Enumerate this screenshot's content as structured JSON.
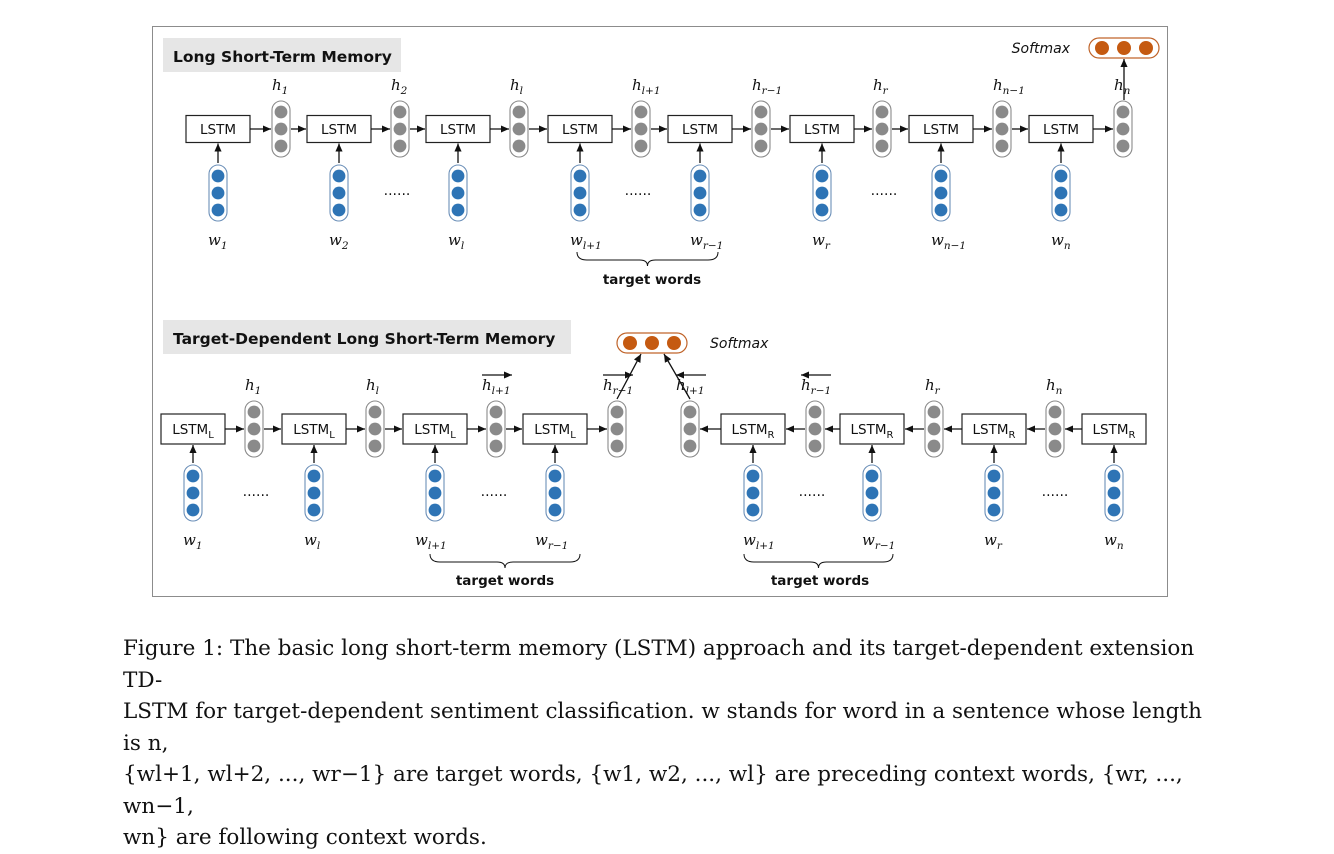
{
  "top_panel": {
    "title": "Long Short-Term Memory",
    "softmax_label": "Softmax",
    "box_label": "LSTM",
    "ellipsis": "......",
    "hidden_labels": [
      {
        "base": "h",
        "sub": "1"
      },
      {
        "base": "h",
        "sub": "2"
      },
      {
        "base": "h",
        "sub": "l"
      },
      {
        "base": "h",
        "sub": "l+1"
      },
      {
        "base": "h",
        "sub": "r−1"
      },
      {
        "base": "h",
        "sub": "r"
      },
      {
        "base": "h",
        "sub": "n−1"
      },
      {
        "base": "h",
        "sub": "n"
      }
    ],
    "word_labels": [
      {
        "base": "w",
        "sub": "1"
      },
      {
        "base": "w",
        "sub": "2"
      },
      {
        "base": "w",
        "sub": "l"
      },
      {
        "base": "w",
        "sub": "l+1"
      },
      {
        "base": "w",
        "sub": "r−1"
      },
      {
        "base": "w",
        "sub": "r"
      },
      {
        "base": "w",
        "sub": "n−1"
      },
      {
        "base": "w",
        "sub": "n"
      }
    ],
    "target_words_label": "target words"
  },
  "bottom_panel": {
    "title": "Target-Dependent Long Short-Term Memory",
    "softmax_label": "Softmax",
    "box_label_left": {
      "base": "LSTM",
      "sub": "L"
    },
    "box_label_right": {
      "base": "LSTM",
      "sub": "R"
    },
    "ellipsis": "......",
    "hidden_labels_left": [
      {
        "base": "h",
        "sub": "1"
      },
      {
        "base": "h",
        "sub": "l"
      },
      {
        "base": "h",
        "sub": "l+1"
      },
      {
        "base": "h",
        "sub": "r−1"
      }
    ],
    "hidden_labels_right": [
      {
        "base": "h",
        "sub": "l+1"
      },
      {
        "base": "h",
        "sub": "r−1"
      },
      {
        "base": "h",
        "sub": "r"
      },
      {
        "base": "h",
        "sub": "n"
      }
    ],
    "word_labels_left": [
      {
        "base": "w",
        "sub": "1"
      },
      {
        "base": "w",
        "sub": "l"
      },
      {
        "base": "w",
        "sub": "l+1"
      },
      {
        "base": "w",
        "sub": "r−1"
      }
    ],
    "word_labels_right": [
      {
        "base": "w",
        "sub": "l+1"
      },
      {
        "base": "w",
        "sub": "r−1"
      },
      {
        "base": "w",
        "sub": "r"
      },
      {
        "base": "w",
        "sub": "n"
      }
    ],
    "target_words_label": "target words"
  },
  "caption": {
    "line1": "Figure 1: The basic long short-term memory (LSTM) approach and its target-dependent extension TD-",
    "line2": "LSTM for target-dependent sentiment classification. w stands for word in a sentence whose length is n,",
    "line3": "{wl+1, wl+2, ..., wr−1} are target words, {w1, w2, ..., wl} are preceding context words, {wr, ..., wn−1,",
    "line4": "wn} are following context words."
  },
  "colors": {
    "hidden_dot": "#8a8a8a",
    "word_dot": "#2e74b5",
    "softmax_dot": "#c55a11",
    "title_bg": "#e6e6e6"
  }
}
